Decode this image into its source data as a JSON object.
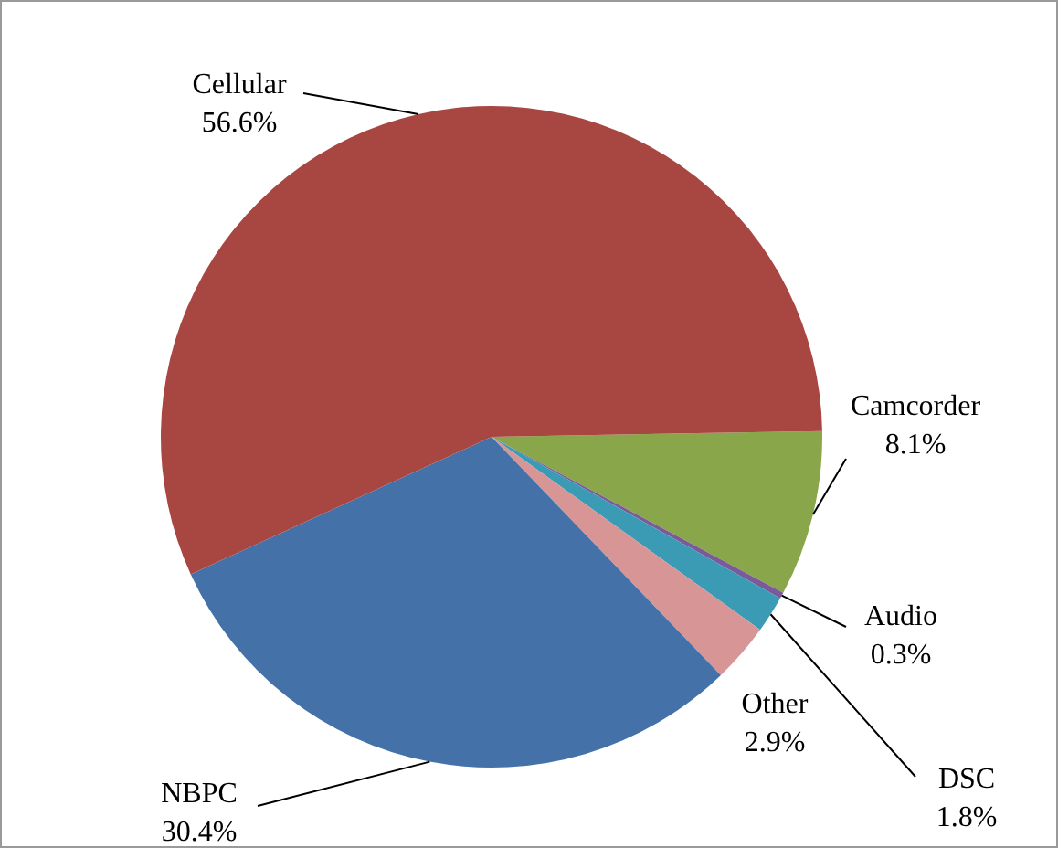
{
  "chart_data": {
    "type": "pie",
    "categories": [
      "Camcorder",
      "Audio",
      "DSC",
      "Other",
      "NBPC",
      "Cellular"
    ],
    "values": [
      8.1,
      0.3,
      1.8,
      2.9,
      30.4,
      56.6
    ],
    "value_labels": [
      "8.1%",
      "0.3%",
      "1.8%",
      "2.9%",
      "30.4%",
      "56.6%"
    ],
    "colors": [
      "#8aa64a",
      "#7b5a9a",
      "#3b9bb5",
      "#d89595",
      "#4472a8",
      "#a84642"
    ],
    "legend": false
  }
}
